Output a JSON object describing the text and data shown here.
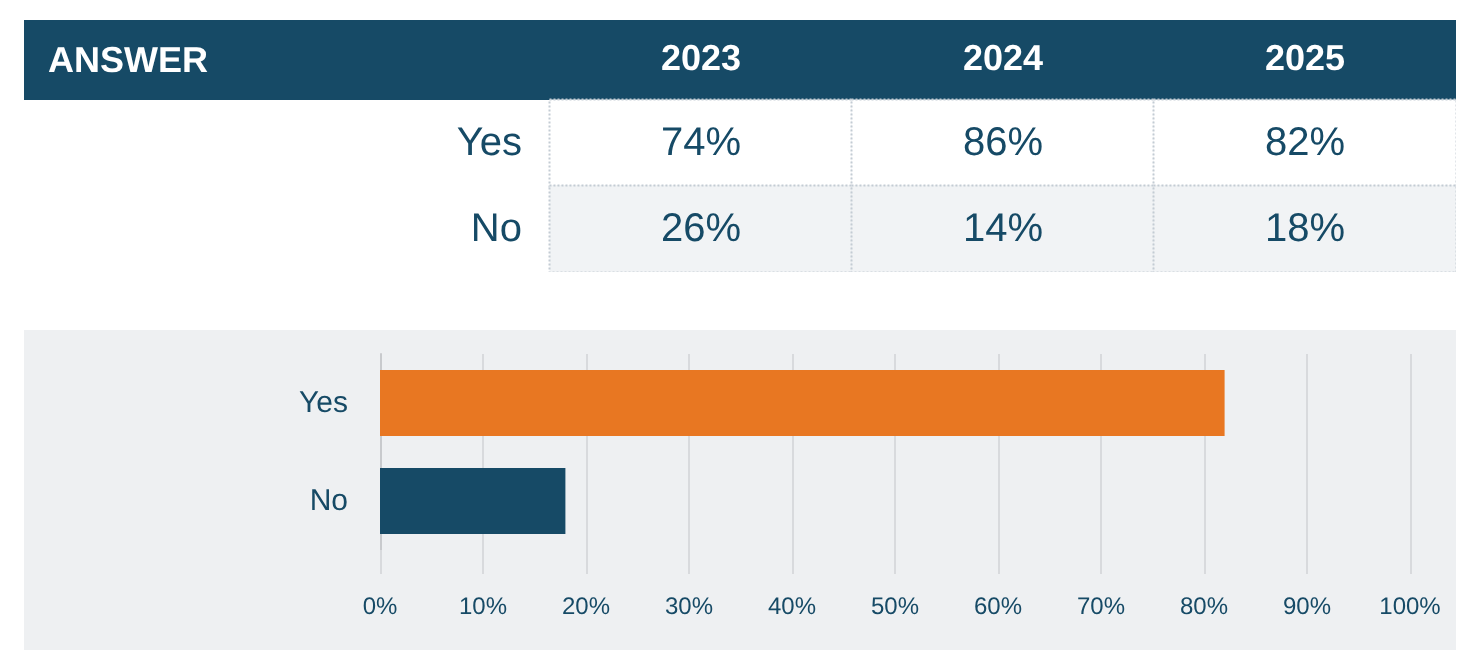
{
  "chart_data": [
    {
      "type": "other",
      "ylabel": "ANSWER",
      "categories": [
        "2023",
        "2024",
        "2025"
      ],
      "y_categories": [
        "Yes",
        "No"
      ],
      "cell_labels": [
        [
          "74%",
          "86%",
          "82%"
        ],
        [
          "26%",
          "14%",
          "18%"
        ]
      ]
    },
    {
      "type": "bar",
      "orientation": "horizontal",
      "categories": [
        "Yes",
        "No"
      ],
      "series": [
        {
          "values": [
            82,
            18
          ],
          "colors": [
            "#e87722",
            "#164a66"
          ]
        }
      ],
      "xlim": [
        0,
        100
      ],
      "xticks": [
        {
          "value": 0,
          "label": "0%"
        },
        {
          "value": 10,
          "label": "10%"
        },
        {
          "value": 20,
          "label": "20%"
        },
        {
          "value": 30,
          "label": "30%"
        },
        {
          "value": 40,
          "label": "40%"
        },
        {
          "value": 50,
          "label": "50%"
        },
        {
          "value": 60,
          "label": "60%"
        },
        {
          "value": 70,
          "label": "70%"
        },
        {
          "value": 80,
          "label": "80%"
        },
        {
          "value": 90,
          "label": "90%"
        },
        {
          "value": 100,
          "label": "100%"
        }
      ],
      "grid": "x"
    }
  ]
}
